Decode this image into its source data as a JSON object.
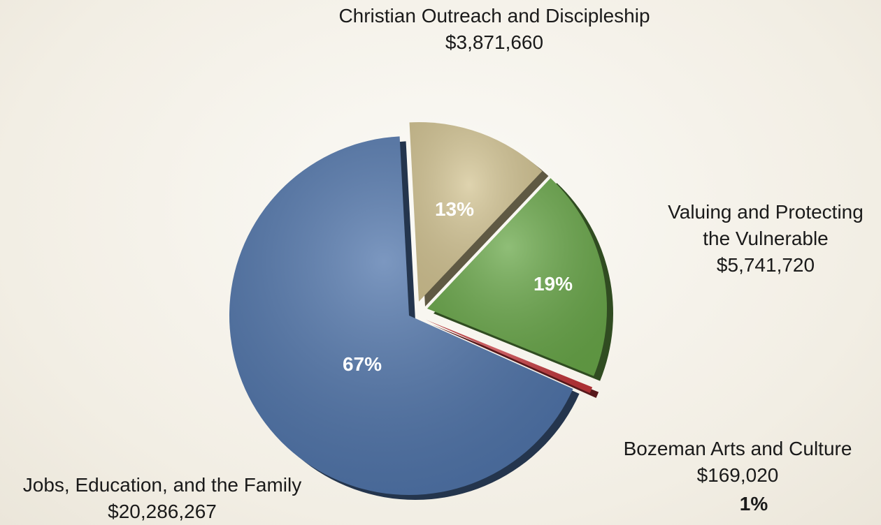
{
  "chart_data": {
    "type": "pie",
    "categories": [
      "Christian Outreach and Discipleship",
      "Valuing and Protecting the Vulnerable",
      "Bozeman Arts and Culture",
      "Jobs, Education, and the Family"
    ],
    "values": [
      3871660,
      5741720,
      169020,
      20286267
    ],
    "value_labels": [
      "$3,871,660",
      "$5,741,720",
      "$169,020",
      "$20,286,267"
    ],
    "percents": [
      13,
      19,
      1,
      67
    ],
    "percent_labels": [
      "13%",
      "19%",
      "1%",
      "67%"
    ],
    "colors": [
      "#d4c594",
      "#6aa84a",
      "#c2363b",
      "#5075ab"
    ]
  }
}
